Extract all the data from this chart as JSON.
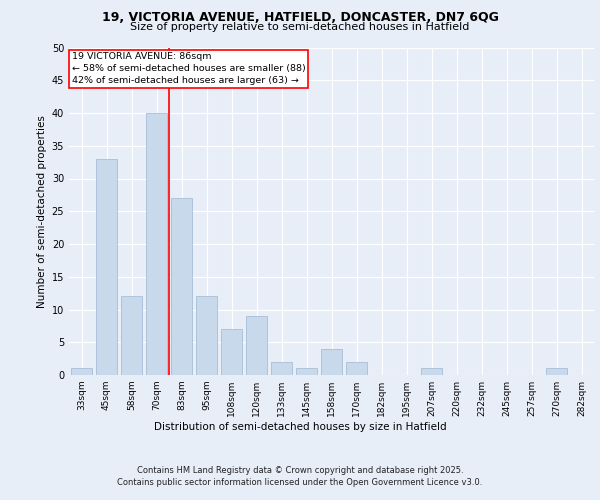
{
  "title_line1": "19, VICTORIA AVENUE, HATFIELD, DONCASTER, DN7 6QG",
  "title_line2": "Size of property relative to semi-detached houses in Hatfield",
  "xlabel": "Distribution of semi-detached houses by size in Hatfield",
  "ylabel": "Number of semi-detached properties",
  "categories": [
    "33sqm",
    "45sqm",
    "58sqm",
    "70sqm",
    "83sqm",
    "95sqm",
    "108sqm",
    "120sqm",
    "133sqm",
    "145sqm",
    "158sqm",
    "170sqm",
    "182sqm",
    "195sqm",
    "207sqm",
    "220sqm",
    "232sqm",
    "245sqm",
    "257sqm",
    "270sqm",
    "282sqm"
  ],
  "values": [
    1,
    33,
    12,
    40,
    27,
    12,
    7,
    9,
    2,
    1,
    4,
    2,
    0,
    0,
    1,
    0,
    0,
    0,
    0,
    1,
    0
  ],
  "bar_color": "#c9d9ec",
  "bar_edge_color": "#a8bfd8",
  "property_line_index": 4,
  "annotation_title": "19 VICTORIA AVENUE: 86sqm",
  "annotation_line1": "← 58% of semi-detached houses are smaller (88)",
  "annotation_line2": "42% of semi-detached houses are larger (63) →",
  "ylim": [
    0,
    50
  ],
  "yticks": [
    0,
    5,
    10,
    15,
    20,
    25,
    30,
    35,
    40,
    45,
    50
  ],
  "footer_line1": "Contains HM Land Registry data © Crown copyright and database right 2025.",
  "footer_line2": "Contains public sector information licensed under the Open Government Licence v3.0.",
  "bg_color": "#e8eef8",
  "plot_bg_color": "#e8eef8",
  "grid_color": "#ffffff",
  "title_fontsize": 9,
  "subtitle_fontsize": 8,
  "ylabel_fontsize": 7.5,
  "xlabel_fontsize": 7.5,
  "tick_fontsize": 6.5,
  "annotation_fontsize": 6.8,
  "footer_fontsize": 6
}
